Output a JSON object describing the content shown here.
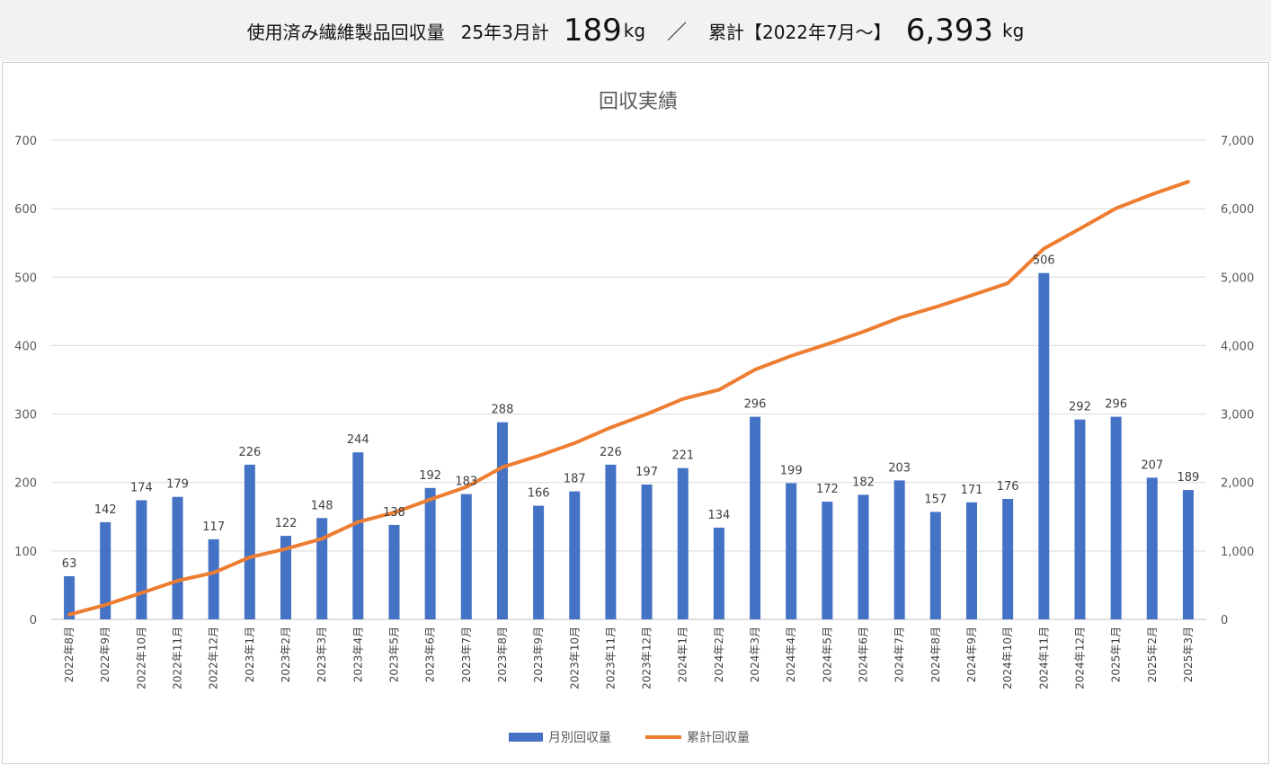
{
  "header": {
    "label": "使用済み繊維製品回収量",
    "period": "25年3月計",
    "month_value": "189",
    "month_unit": "kg",
    "separator": "／",
    "cum_label": "累計【2022年7月～】",
    "cum_value": "6,393",
    "cum_unit": "kg"
  },
  "chart_data": {
    "type": "bar",
    "title": "回収実績",
    "categories": [
      "2022年8月",
      "2022年9月",
      "2022年10月",
      "2022年11月",
      "2022年12月",
      "2023年1月",
      "2023年2月",
      "2023年3月",
      "2023年4月",
      "2023年5月",
      "2023年6月",
      "2023年7月",
      "2023年8月",
      "2023年9月",
      "2023年10月",
      "2023年11月",
      "2023年12月",
      "2024年1月",
      "2024年2月",
      "2024年3月",
      "2024年4月",
      "2024年5月",
      "2024年6月",
      "2024年7月",
      "2024年8月",
      "2024年9月",
      "2024年10月",
      "2024年11月",
      "2024年12月",
      "2025年1月",
      "2025年2月",
      "2025年3月"
    ],
    "series": [
      {
        "name": "月別回収量",
        "type": "bar",
        "axis": "left",
        "color": "#4472c4",
        "values": [
          63,
          142,
          174,
          179,
          117,
          226,
          122,
          148,
          244,
          138,
          192,
          183,
          288,
          166,
          187,
          226,
          197,
          221,
          134,
          296,
          199,
          172,
          182,
          203,
          157,
          171,
          176,
          506,
          292,
          296,
          207,
          189
        ]
      },
      {
        "name": "累計回収量",
        "type": "line",
        "axis": "right",
        "color": "#ed7d31",
        "values": [
          70,
          212,
          386,
          565,
          682,
          908,
          1030,
          1178,
          1422,
          1560,
          1752,
          1935,
          2223,
          2389,
          2576,
          2802,
          2999,
          3220,
          3354,
          3650,
          3849,
          4021,
          4203,
          4406,
          4563,
          4734,
          4910,
          5416,
          5708,
          6004,
          6211,
          6393
        ]
      }
    ],
    "y_left": {
      "min": 0,
      "max": 700,
      "ticks": [
        "0",
        "100",
        "200",
        "300",
        "400",
        "500",
        "600",
        "700"
      ]
    },
    "y_right": {
      "min": 0,
      "max": 7000,
      "ticks": [
        "0",
        "1,000",
        "2,000",
        "3,000",
        "4,000",
        "5,000",
        "6,000",
        "7,000"
      ]
    },
    "legend_position": "bottom",
    "grid": true
  }
}
